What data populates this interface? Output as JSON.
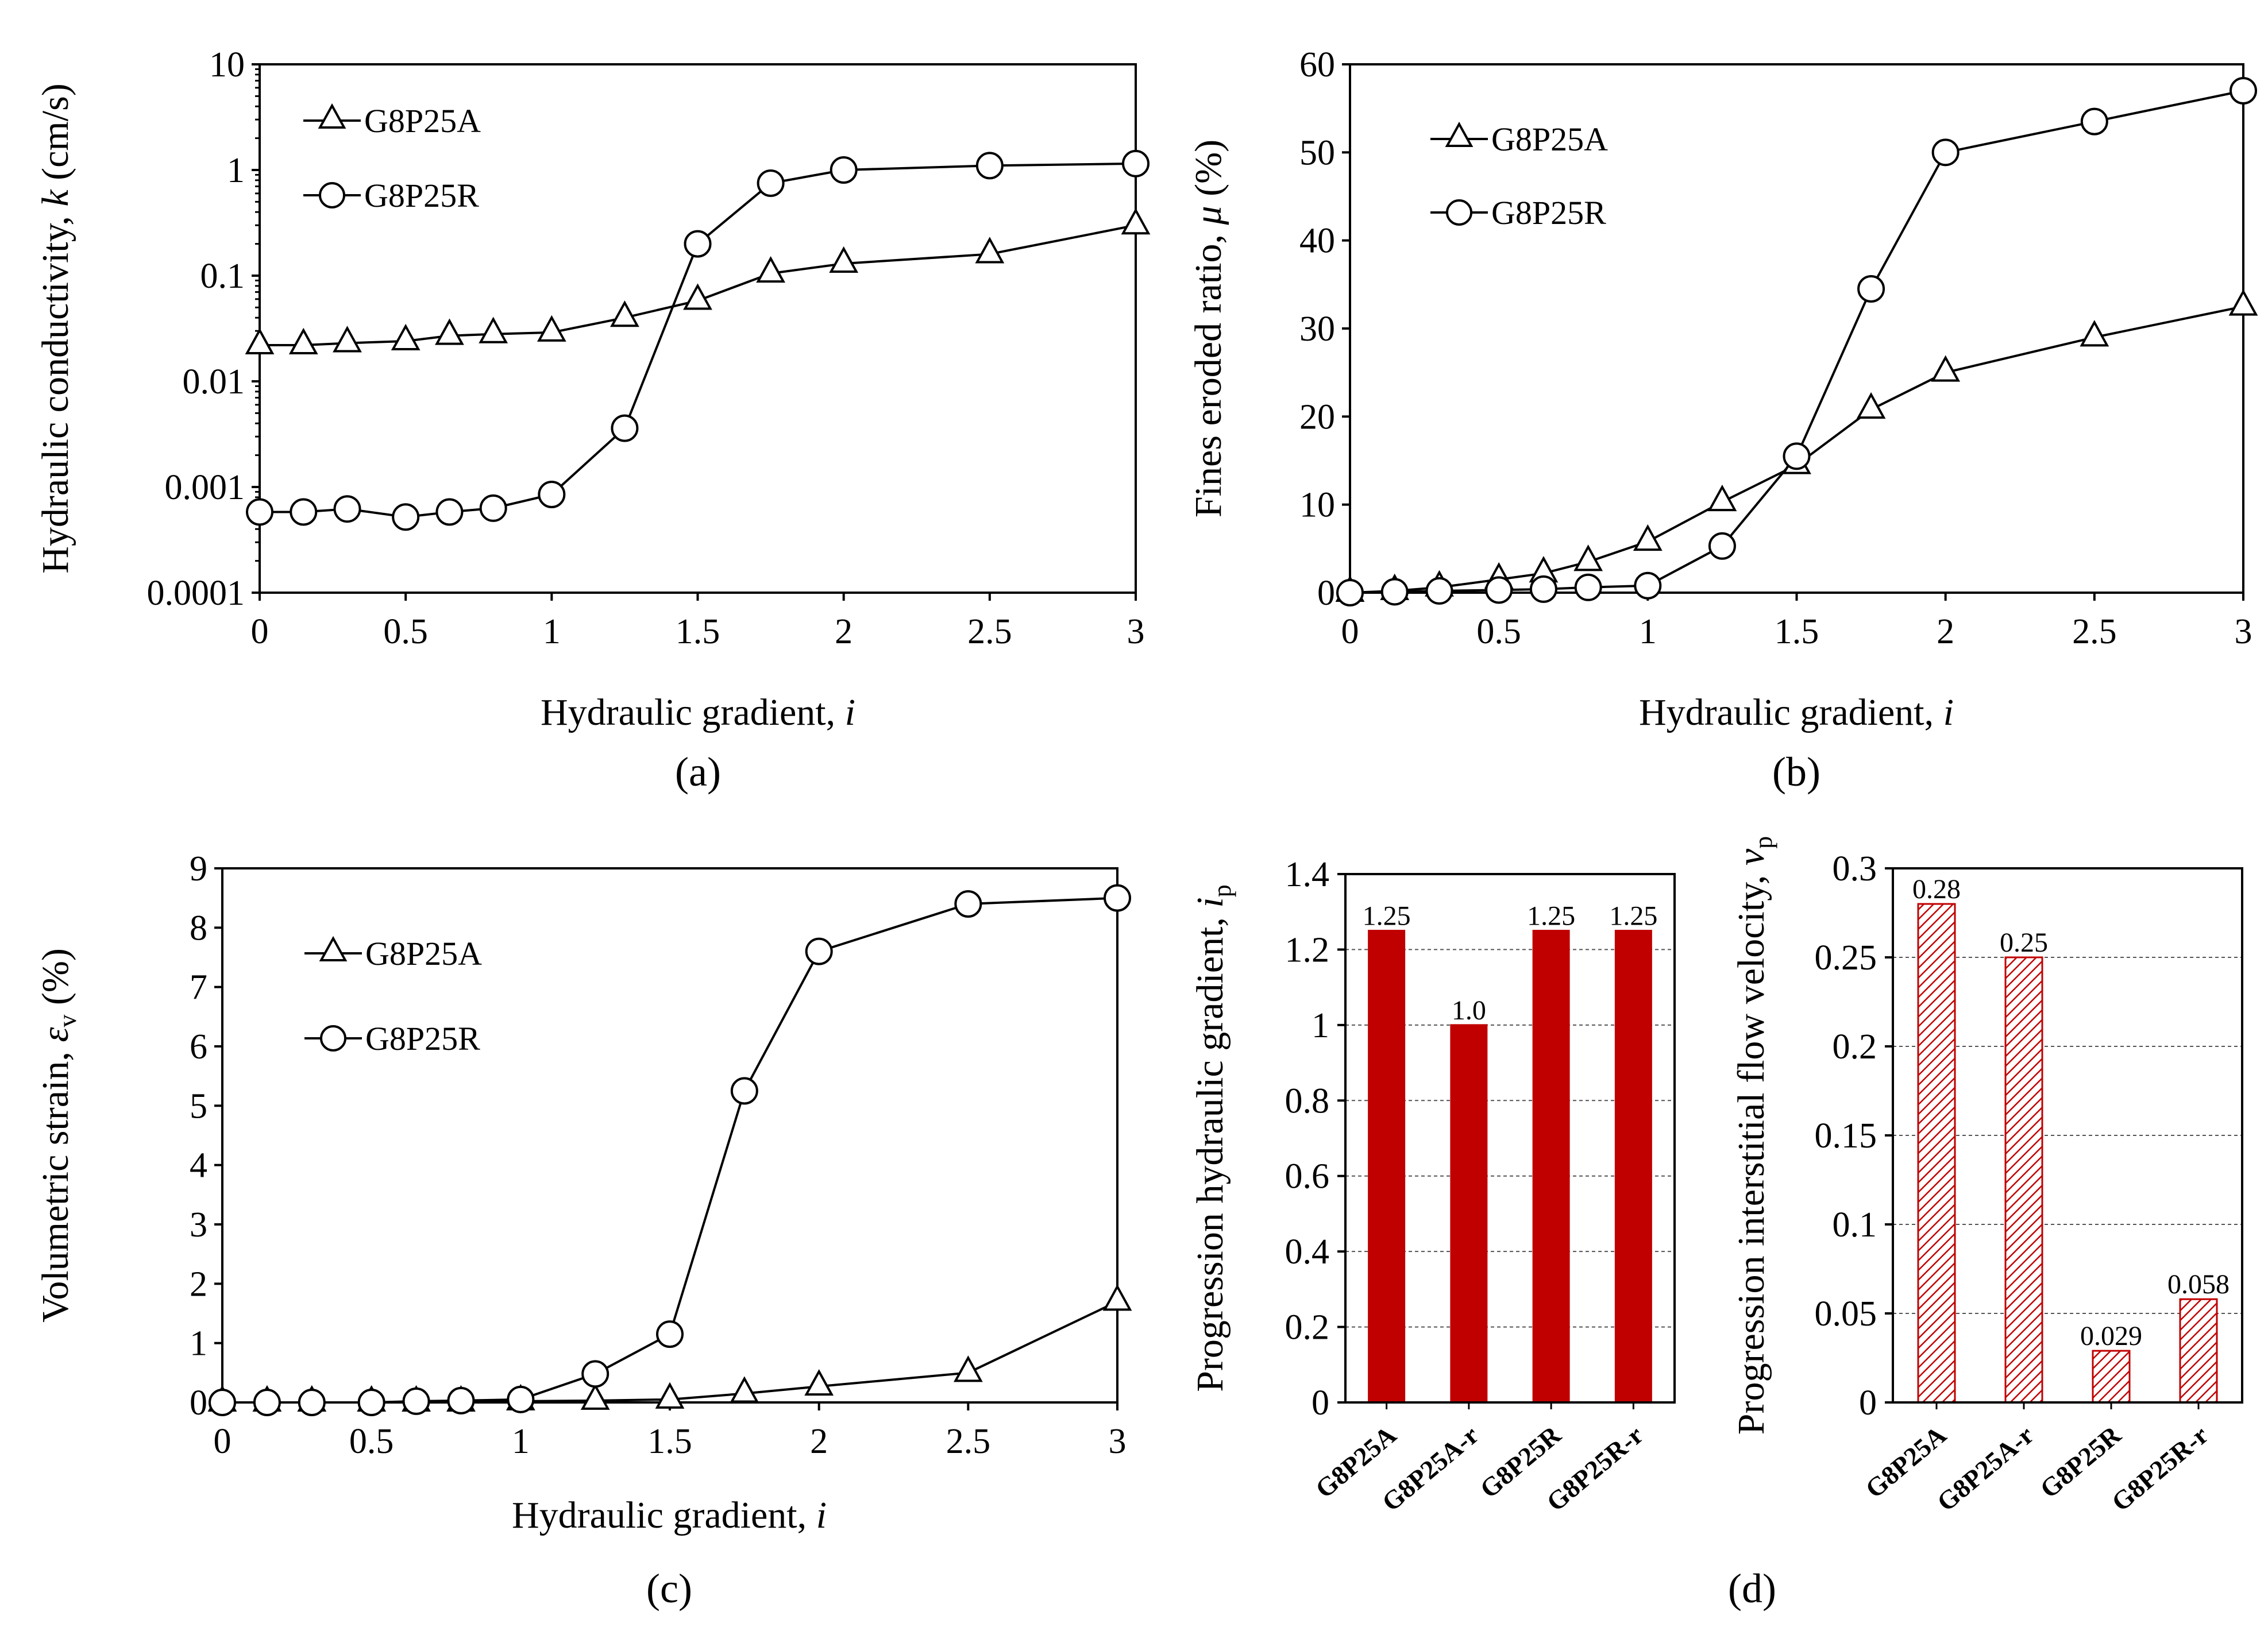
{
  "chart_data": [
    {
      "panel": "(a)",
      "type": "line",
      "xlabel": "Hydraulic gradient, ",
      "xlabel_var": "i",
      "ylabel": "Hydraulic conductivity, ",
      "ylabel_var": "k",
      "ylabel_unit": " (cm/s)",
      "yscale": "log",
      "xlim": [
        0,
        3
      ],
      "ylim": [
        0.0001,
        10
      ],
      "xticks": [
        "0",
        "0.5",
        "1",
        "1.5",
        "2",
        "2.5",
        "3"
      ],
      "yticks": [
        "0.0001",
        "0.001",
        "0.01",
        "0.1",
        "1",
        "10"
      ],
      "grid": false,
      "legend": "top-left",
      "series": [
        {
          "name": "G8P25A",
          "marker": "triangle",
          "x": [
            0,
            0.15,
            0.3,
            0.5,
            0.65,
            0.8,
            1.0,
            1.25,
            1.5,
            1.75,
            2.0,
            2.5,
            3.0
          ],
          "y": [
            0.022,
            0.022,
            0.023,
            0.024,
            0.027,
            0.028,
            0.029,
            0.04,
            0.058,
            0.105,
            0.13,
            0.16,
            0.3
          ]
        },
        {
          "name": "G8P25R",
          "marker": "circle",
          "x": [
            0,
            0.15,
            0.3,
            0.5,
            0.65,
            0.8,
            1.0,
            1.25,
            1.5,
            1.75,
            2.0,
            2.5,
            3.0
          ],
          "y": [
            0.00058,
            0.00058,
            0.00062,
            0.00052,
            0.00058,
            0.00063,
            0.00085,
            0.0036,
            0.2,
            0.75,
            1.0,
            1.1,
            1.15
          ]
        }
      ]
    },
    {
      "panel": "(b)",
      "type": "line",
      "xlabel": "Hydraulic gradient, ",
      "xlabel_var": "i",
      "ylabel": "Fines eroded ratio, ",
      "ylabel_var": "μ",
      "ylabel_unit": " (%)",
      "xlim": [
        0,
        3
      ],
      "ylim": [
        0,
        60
      ],
      "xticks": [
        "0",
        "0.5",
        "1",
        "1.5",
        "2",
        "2.5",
        "3"
      ],
      "yticks": [
        "0",
        "10",
        "20",
        "30",
        "40",
        "50",
        "60"
      ],
      "grid": false,
      "legend": "top-left",
      "series": [
        {
          "name": "G8P25A",
          "marker": "triangle",
          "x": [
            0,
            0.15,
            0.3,
            0.5,
            0.65,
            0.8,
            1.0,
            1.25,
            1.5,
            1.75,
            2.0,
            2.5,
            3.0
          ],
          "y": [
            0,
            0.2,
            0.6,
            1.5,
            2.2,
            3.5,
            5.8,
            10.3,
            14.5,
            20.8,
            25.0,
            29.0,
            32.5
          ]
        },
        {
          "name": "G8P25R",
          "marker": "circle",
          "x": [
            0,
            0.15,
            0.3,
            0.5,
            0.65,
            0.8,
            1.0,
            1.25,
            1.5,
            1.75,
            2.0,
            2.5,
            3.0
          ],
          "y": [
            0,
            0.1,
            0.2,
            0.3,
            0.4,
            0.6,
            0.8,
            5.3,
            15.5,
            34.5,
            50.0,
            53.5,
            57.0
          ]
        }
      ]
    },
    {
      "panel": "(c)",
      "type": "line",
      "xlabel": "Hydraulic gradient, ",
      "xlabel_var": "i",
      "ylabel": "Volumetric strain, ",
      "ylabel_var": "ε",
      "ylabel_sub": "v",
      "ylabel_unit": " (%)",
      "xlim": [
        0,
        3
      ],
      "ylim": [
        0,
        9
      ],
      "xticks": [
        "0",
        "0.5",
        "1",
        "1.5",
        "2",
        "2.5",
        "3"
      ],
      "yticks": [
        "0",
        "1",
        "2",
        "3",
        "4",
        "5",
        "6",
        "7",
        "8",
        "9"
      ],
      "grid": false,
      "legend": "top-left",
      "series": [
        {
          "name": "G8P25A",
          "marker": "triangle",
          "x": [
            0,
            0.15,
            0.3,
            0.5,
            0.65,
            0.8,
            1.0,
            1.25,
            1.5,
            1.75,
            2.0,
            2.5,
            3.0
          ],
          "y": [
            0,
            0,
            0,
            0,
            0,
            0,
            0.02,
            0.03,
            0.05,
            0.15,
            0.27,
            0.5,
            1.7
          ]
        },
        {
          "name": "G8P25R",
          "marker": "circle",
          "x": [
            0,
            0.15,
            0.3,
            0.5,
            0.65,
            0.8,
            1.0,
            1.25,
            1.5,
            1.75,
            2.0,
            2.5,
            3.0
          ],
          "y": [
            0,
            0,
            0,
            0,
            0.02,
            0.03,
            0.05,
            0.48,
            1.15,
            5.25,
            7.6,
            8.4,
            8.5
          ]
        }
      ]
    },
    {
      "panel": "(d)",
      "type": "bar",
      "ylabel": "Progression hydraulic gradient, ",
      "ylabel_var": "i",
      "ylabel_sub": "p",
      "ylim": [
        0,
        1.4
      ],
      "yticks": [
        "0",
        "0.2",
        "0.4",
        "0.6",
        "0.8",
        "1",
        "1.2",
        "1.4"
      ],
      "grid": true,
      "categories": [
        "G8P25A",
        "G8P25A-r",
        "G8P25R",
        "G8P25R-r"
      ],
      "values": [
        1.25,
        1.0,
        1.25,
        1.25
      ],
      "labels": [
        "1.25",
        "1.0",
        "1.25",
        "1.25"
      ],
      "color": "#c00000",
      "fill": "solid"
    },
    {
      "panel": "(d)",
      "type": "bar",
      "ylabel": "Progression interstitial flow velocity, ",
      "ylabel_var": "v",
      "ylabel_sub": "p",
      "ylim": [
        0,
        0.3
      ],
      "yticks": [
        "0",
        "0.05",
        "0.1",
        "0.15",
        "0.2",
        "0.25",
        "0.3"
      ],
      "grid": true,
      "categories": [
        "G8P25A",
        "G8P25A-r",
        "G8P25R",
        "G8P25R-r"
      ],
      "values": [
        0.28,
        0.25,
        0.029,
        0.058
      ],
      "labels": [
        "0.28",
        "0.25",
        "0.029",
        "0.058"
      ],
      "color": "#c00000",
      "fill": "hatched"
    }
  ]
}
